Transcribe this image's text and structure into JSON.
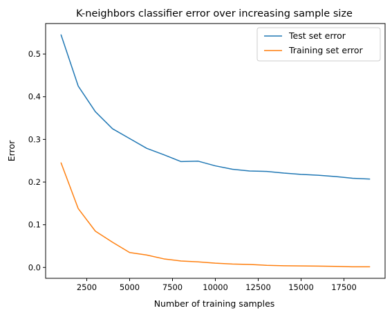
{
  "chart_data": {
    "type": "line",
    "title": "K-neighbors classifier error over increasing sample size",
    "xlabel": "Number of training samples",
    "ylabel": "Error",
    "x": [
      1000,
      2000,
      3000,
      4000,
      5000,
      6000,
      7000,
      8000,
      9000,
      10000,
      11000,
      12000,
      13000,
      14000,
      15000,
      16000,
      17000,
      18000,
      19000
    ],
    "series": [
      {
        "name": "Test set error",
        "color": "#1f77b4",
        "values": [
          0.545,
          0.425,
          0.365,
          0.325,
          0.302,
          0.279,
          0.264,
          0.248,
          0.249,
          0.238,
          0.23,
          0.226,
          0.225,
          0.221,
          0.218,
          0.216,
          0.213,
          0.209,
          0.207
        ]
      },
      {
        "name": "Training set error",
        "color": "#ff7f0e",
        "values": [
          0.245,
          0.138,
          0.085,
          0.059,
          0.035,
          0.029,
          0.02,
          0.015,
          0.013,
          0.01,
          0.008,
          0.007,
          0.005,
          0.004,
          0.0035,
          0.003,
          0.0025,
          0.0015,
          0.0015
        ]
      }
    ],
    "xlim": [
      100,
      19900
    ],
    "ylim": [
      -0.0255,
      0.5715
    ],
    "x_ticks": [
      2500,
      5000,
      7500,
      10000,
      12500,
      15000,
      17500
    ],
    "x_tick_labels": [
      "2500",
      "5000",
      "7500",
      "10000",
      "12500",
      "15000",
      "17500"
    ],
    "y_ticks": [
      0.0,
      0.1,
      0.2,
      0.3,
      0.4,
      0.5
    ],
    "y_tick_labels": [
      "0.0",
      "0.1",
      "0.2",
      "0.3",
      "0.4",
      "0.5"
    ],
    "grid": false,
    "legend_position": "top-right"
  }
}
